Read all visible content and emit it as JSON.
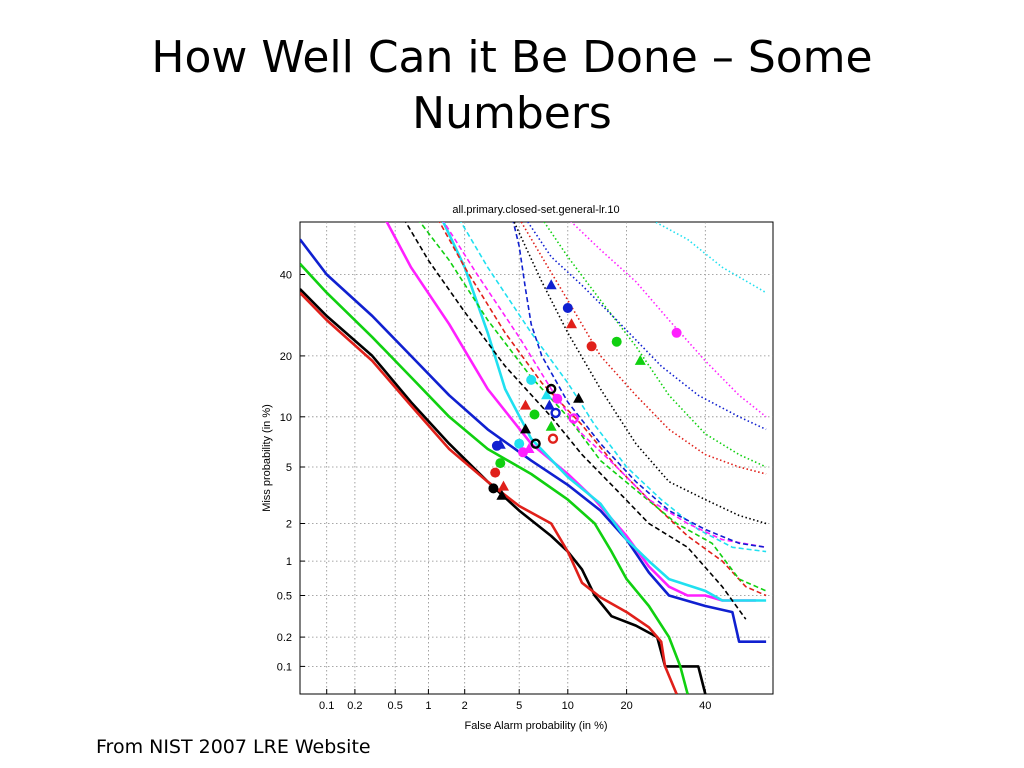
{
  "slide": {
    "title_line1": "How Well Can it Be Done – Some",
    "title_line2": "Numbers",
    "caption": "From NIST 2007 LRE Website"
  },
  "chart_data": {
    "type": "line",
    "title": "all.primary.closed-set.general-lr.10",
    "xlabel": "False Alarm probability (in %)",
    "ylabel": "Miss probability (in %)",
    "scale": "normal-deviate (DET)",
    "xlim": [
      0.05,
      60
    ],
    "ylim": [
      0.05,
      55
    ],
    "x_ticks": [
      {
        "v": 0.1,
        "label": "0.1"
      },
      {
        "v": 0.2,
        "label": "0.2"
      },
      {
        "v": 0.5,
        "label": "0.5"
      },
      {
        "v": 1,
        "label": "1"
      },
      {
        "v": 2,
        "label": "2"
      },
      {
        "v": 5,
        "label": "5"
      },
      {
        "v": 10,
        "label": "10"
      },
      {
        "v": 20,
        "label": "20"
      },
      {
        "v": 40,
        "label": "40"
      }
    ],
    "y_ticks": [
      {
        "v": 0.1,
        "label": "0.1"
      },
      {
        "v": 0.2,
        "label": "0.2"
      },
      {
        "v": 0.5,
        "label": "0.5"
      },
      {
        "v": 1,
        "label": "1"
      },
      {
        "v": 2,
        "label": "2"
      },
      {
        "v": 5,
        "label": "5"
      },
      {
        "v": 10,
        "label": "10"
      },
      {
        "v": 20,
        "label": "20"
      },
      {
        "v": 40,
        "label": "40"
      }
    ],
    "grid": true,
    "series": [
      {
        "color": "#000000",
        "style": "solid",
        "points": [
          [
            0.05,
            36
          ],
          [
            0.1,
            29
          ],
          [
            0.3,
            20
          ],
          [
            0.7,
            12
          ],
          [
            1.5,
            7
          ],
          [
            3,
            4
          ],
          [
            5,
            2.5
          ],
          [
            8,
            1.6
          ],
          [
            10,
            1.2
          ],
          [
            12,
            0.85
          ],
          [
            14,
            0.5
          ],
          [
            17,
            0.32
          ],
          [
            22,
            0.26
          ],
          [
            27,
            0.2
          ],
          [
            29,
            0.1
          ],
          [
            38,
            0.1
          ],
          [
            40,
            0.05
          ]
        ]
      },
      {
        "color": "#e0201a",
        "style": "solid",
        "points": [
          [
            0.05,
            35
          ],
          [
            0.1,
            28
          ],
          [
            0.3,
            19
          ],
          [
            0.7,
            11.5
          ],
          [
            1.5,
            6.5
          ],
          [
            3,
            4
          ],
          [
            5,
            2.7
          ],
          [
            8,
            2
          ],
          [
            10,
            1.2
          ],
          [
            12,
            0.65
          ],
          [
            15,
            0.48
          ],
          [
            20,
            0.35
          ],
          [
            25,
            0.25
          ],
          [
            28,
            0.18
          ],
          [
            29,
            0.1
          ],
          [
            32,
            0.05
          ]
        ]
      },
      {
        "color": "#10d010",
        "style": "solid",
        "points": [
          [
            0.05,
            43
          ],
          [
            0.1,
            35
          ],
          [
            0.3,
            24
          ],
          [
            0.7,
            16
          ],
          [
            1.5,
            10
          ],
          [
            3,
            6.5
          ],
          [
            6,
            4.5
          ],
          [
            10,
            3
          ],
          [
            14,
            2
          ],
          [
            17,
            1.2
          ],
          [
            20,
            0.7
          ],
          [
            25,
            0.4
          ],
          [
            30,
            0.2
          ],
          [
            33,
            0.1
          ],
          [
            35,
            0.05
          ]
        ]
      },
      {
        "color": "#1020d0",
        "style": "solid",
        "points": [
          [
            0.05,
            50
          ],
          [
            0.1,
            40
          ],
          [
            0.3,
            29
          ],
          [
            0.7,
            20
          ],
          [
            1.5,
            13
          ],
          [
            3,
            8.5
          ],
          [
            6,
            5.5
          ],
          [
            10,
            3.8
          ],
          [
            15,
            2.5
          ],
          [
            20,
            1.5
          ],
          [
            25,
            0.8
          ],
          [
            30,
            0.5
          ],
          [
            40,
            0.4
          ],
          [
            48,
            0.35
          ],
          [
            50,
            0.18
          ],
          [
            58,
            0.18
          ]
        ]
      },
      {
        "color": "#ff20ff",
        "style": "solid",
        "points": [
          [
            0.4,
            56
          ],
          [
            0.7,
            42
          ],
          [
            1.5,
            27
          ],
          [
            3,
            14
          ],
          [
            6,
            7
          ],
          [
            10,
            4.5
          ],
          [
            14,
            3
          ],
          [
            20,
            1.6
          ],
          [
            25,
            0.9
          ],
          [
            30,
            0.6
          ],
          [
            35,
            0.5
          ],
          [
            40,
            0.5
          ],
          [
            45,
            0.45
          ],
          [
            55,
            0.45
          ]
        ]
      },
      {
        "color": "#20e0f0",
        "style": "solid",
        "points": [
          [
            1.3,
            56
          ],
          [
            2,
            42
          ],
          [
            3,
            25
          ],
          [
            4,
            14
          ],
          [
            6,
            7.5
          ],
          [
            10,
            4.3
          ],
          [
            15,
            2.8
          ],
          [
            20,
            1.5
          ],
          [
            25,
            1
          ],
          [
            30,
            0.7
          ],
          [
            40,
            0.55
          ],
          [
            45,
            0.45
          ],
          [
            58,
            0.45
          ]
        ]
      },
      {
        "color": "#000000",
        "style": "dashed",
        "points": [
          [
            0.6,
            56
          ],
          [
            1,
            44
          ],
          [
            2,
            30
          ],
          [
            4,
            18
          ],
          [
            8,
            10
          ],
          [
            12,
            6
          ],
          [
            18,
            3.5
          ],
          [
            25,
            2
          ],
          [
            35,
            1.3
          ],
          [
            45,
            0.6
          ],
          [
            52,
            0.3
          ]
        ]
      },
      {
        "color": "#e0201a",
        "style": "dashed",
        "points": [
          [
            1.2,
            56
          ],
          [
            2,
            42
          ],
          [
            4,
            25
          ],
          [
            7,
            15
          ],
          [
            12,
            9
          ],
          [
            18,
            5
          ],
          [
            25,
            3
          ],
          [
            35,
            1.6
          ],
          [
            45,
            1
          ],
          [
            52,
            0.6
          ],
          [
            58,
            0.5
          ]
        ]
      },
      {
        "color": "#10d010",
        "style": "dashed",
        "points": [
          [
            0.8,
            56
          ],
          [
            1.5,
            44
          ],
          [
            3,
            28
          ],
          [
            6,
            16
          ],
          [
            10,
            10
          ],
          [
            15,
            5.5
          ],
          [
            22,
            3.5
          ],
          [
            32,
            2
          ],
          [
            42,
            1.4
          ],
          [
            50,
            0.7
          ],
          [
            58,
            0.55
          ]
        ]
      },
      {
        "color": "#20e0f0",
        "style": "dashed",
        "points": [
          [
            1.8,
            56
          ],
          [
            3,
            42
          ],
          [
            6,
            25
          ],
          [
            10,
            15
          ],
          [
            14,
            9
          ],
          [
            20,
            5
          ],
          [
            28,
            3
          ],
          [
            38,
            1.8
          ],
          [
            48,
            1.3
          ],
          [
            58,
            1.2
          ]
        ]
      },
      {
        "color": "#ff20ff",
        "style": "dashed",
        "points": [
          [
            1.3,
            56
          ],
          [
            2.5,
            40
          ],
          [
            5,
            24
          ],
          [
            8,
            14
          ],
          [
            12,
            8
          ],
          [
            18,
            5
          ],
          [
            25,
            3
          ],
          [
            35,
            2
          ],
          [
            45,
            1.5
          ],
          [
            58,
            1.3
          ]
        ]
      },
      {
        "color": "#1020d0",
        "style": "dashed",
        "points": [
          [
            4.5,
            56
          ],
          [
            5,
            48
          ],
          [
            5.5,
            36
          ],
          [
            6,
            27
          ],
          [
            7,
            20
          ],
          [
            10,
            12
          ],
          [
            15,
            7
          ],
          [
            22,
            4
          ],
          [
            30,
            2.5
          ],
          [
            40,
            1.8
          ],
          [
            50,
            1.4
          ],
          [
            58,
            1.3
          ]
        ]
      },
      {
        "color": "#000000",
        "style": "dotted",
        "points": [
          [
            4.5,
            56
          ],
          [
            7,
            38
          ],
          [
            10,
            25
          ],
          [
            15,
            14
          ],
          [
            22,
            7
          ],
          [
            30,
            4
          ],
          [
            40,
            3
          ],
          [
            50,
            2.3
          ],
          [
            58,
            2
          ]
        ]
      },
      {
        "color": "#e0201a",
        "style": "dotted",
        "points": [
          [
            5,
            56
          ],
          [
            7,
            45
          ],
          [
            10,
            33
          ],
          [
            15,
            20
          ],
          [
            22,
            13
          ],
          [
            30,
            8.5
          ],
          [
            40,
            6
          ],
          [
            50,
            5
          ],
          [
            58,
            4.5
          ]
        ]
      },
      {
        "color": "#10d010",
        "style": "dotted",
        "points": [
          [
            7,
            56
          ],
          [
            10,
            45
          ],
          [
            15,
            33
          ],
          [
            22,
            22
          ],
          [
            30,
            13
          ],
          [
            40,
            8
          ],
          [
            50,
            6
          ],
          [
            58,
            5
          ]
        ]
      },
      {
        "color": "#1020d0",
        "style": "dotted",
        "points": [
          [
            5.5,
            56
          ],
          [
            8,
            45
          ],
          [
            12,
            37
          ],
          [
            18,
            28
          ],
          [
            28,
            18
          ],
          [
            38,
            13
          ],
          [
            50,
            10
          ],
          [
            58,
            8.5
          ]
        ]
      },
      {
        "color": "#ff20ff",
        "style": "dotted",
        "points": [
          [
            10,
            56
          ],
          [
            15,
            47
          ],
          [
            22,
            38
          ],
          [
            30,
            28
          ],
          [
            40,
            19
          ],
          [
            50,
            13
          ],
          [
            58,
            10
          ]
        ]
      },
      {
        "color": "#20e0f0",
        "style": "dotted",
        "points": [
          [
            25,
            56
          ],
          [
            35,
            50
          ],
          [
            45,
            42
          ],
          [
            58,
            35
          ]
        ]
      }
    ],
    "markers": [
      {
        "x": 3.3,
        "y": 3.6,
        "color": "#000000",
        "kind": "circle"
      },
      {
        "x": 3.8,
        "y": 3.2,
        "color": "#000000",
        "kind": "triangle"
      },
      {
        "x": 3.4,
        "y": 4.6,
        "color": "#e0201a",
        "kind": "circle"
      },
      {
        "x": 3.9,
        "y": 3.7,
        "color": "#e0201a",
        "kind": "triangle"
      },
      {
        "x": 3.7,
        "y": 5.3,
        "color": "#10d010",
        "kind": "circle"
      },
      {
        "x": 3.5,
        "y": 6.8,
        "color": "#1020d0",
        "kind": "circle"
      },
      {
        "x": 3.7,
        "y": 6.9,
        "color": "#1020d0",
        "kind": "triangle"
      },
      {
        "x": 5.0,
        "y": 7.0,
        "color": "#20e0f0",
        "kind": "circle"
      },
      {
        "x": 5.3,
        "y": 6.2,
        "color": "#ff20ff",
        "kind": "circle"
      },
      {
        "x": 5.8,
        "y": 6.5,
        "color": "#ff20ff",
        "kind": "triangle"
      },
      {
        "x": 5.5,
        "y": 8.5,
        "color": "#000000",
        "kind": "triangle"
      },
      {
        "x": 6.4,
        "y": 7.0,
        "color": "#000000",
        "kind": "ring"
      },
      {
        "x": 5.5,
        "y": 11.5,
        "color": "#e0201a",
        "kind": "triangle"
      },
      {
        "x": 6.3,
        "y": 10.3,
        "color": "#10d010",
        "kind": "circle"
      },
      {
        "x": 8.0,
        "y": 8.8,
        "color": "#10d010",
        "kind": "triangle"
      },
      {
        "x": 8.2,
        "y": 7.5,
        "color": "#e0201a",
        "kind": "ring"
      },
      {
        "x": 6.0,
        "y": 15.5,
        "color": "#20e0f0",
        "kind": "circle"
      },
      {
        "x": 7.5,
        "y": 13.0,
        "color": "#20e0f0",
        "kind": "triangle"
      },
      {
        "x": 7.8,
        "y": 11.5,
        "color": "#1020d0",
        "kind": "triangle"
      },
      {
        "x": 8.5,
        "y": 10.5,
        "color": "#1020d0",
        "kind": "ring"
      },
      {
        "x": 8.0,
        "y": 14.0,
        "color": "#000000",
        "kind": "ring"
      },
      {
        "x": 8.7,
        "y": 12.5,
        "color": "#ff20ff",
        "kind": "circle"
      },
      {
        "x": 10.8,
        "y": 9.8,
        "color": "#ff20ff",
        "kind": "ring"
      },
      {
        "x": 11.5,
        "y": 12.5,
        "color": "#000000",
        "kind": "triangle"
      },
      {
        "x": 8.0,
        "y": 37.0,
        "color": "#1020d0",
        "kind": "triangle"
      },
      {
        "x": 10.0,
        "y": 31.0,
        "color": "#1020d0",
        "kind": "circle"
      },
      {
        "x": 10.5,
        "y": 27.0,
        "color": "#e0201a",
        "kind": "triangle"
      },
      {
        "x": 13.5,
        "y": 22.0,
        "color": "#e0201a",
        "kind": "circle"
      },
      {
        "x": 18.0,
        "y": 23.0,
        "color": "#10d010",
        "kind": "circle"
      },
      {
        "x": 23.0,
        "y": 19.0,
        "color": "#10d010",
        "kind": "triangle"
      },
      {
        "x": 32.0,
        "y": 25.0,
        "color": "#ff20ff",
        "kind": "circle"
      }
    ]
  }
}
